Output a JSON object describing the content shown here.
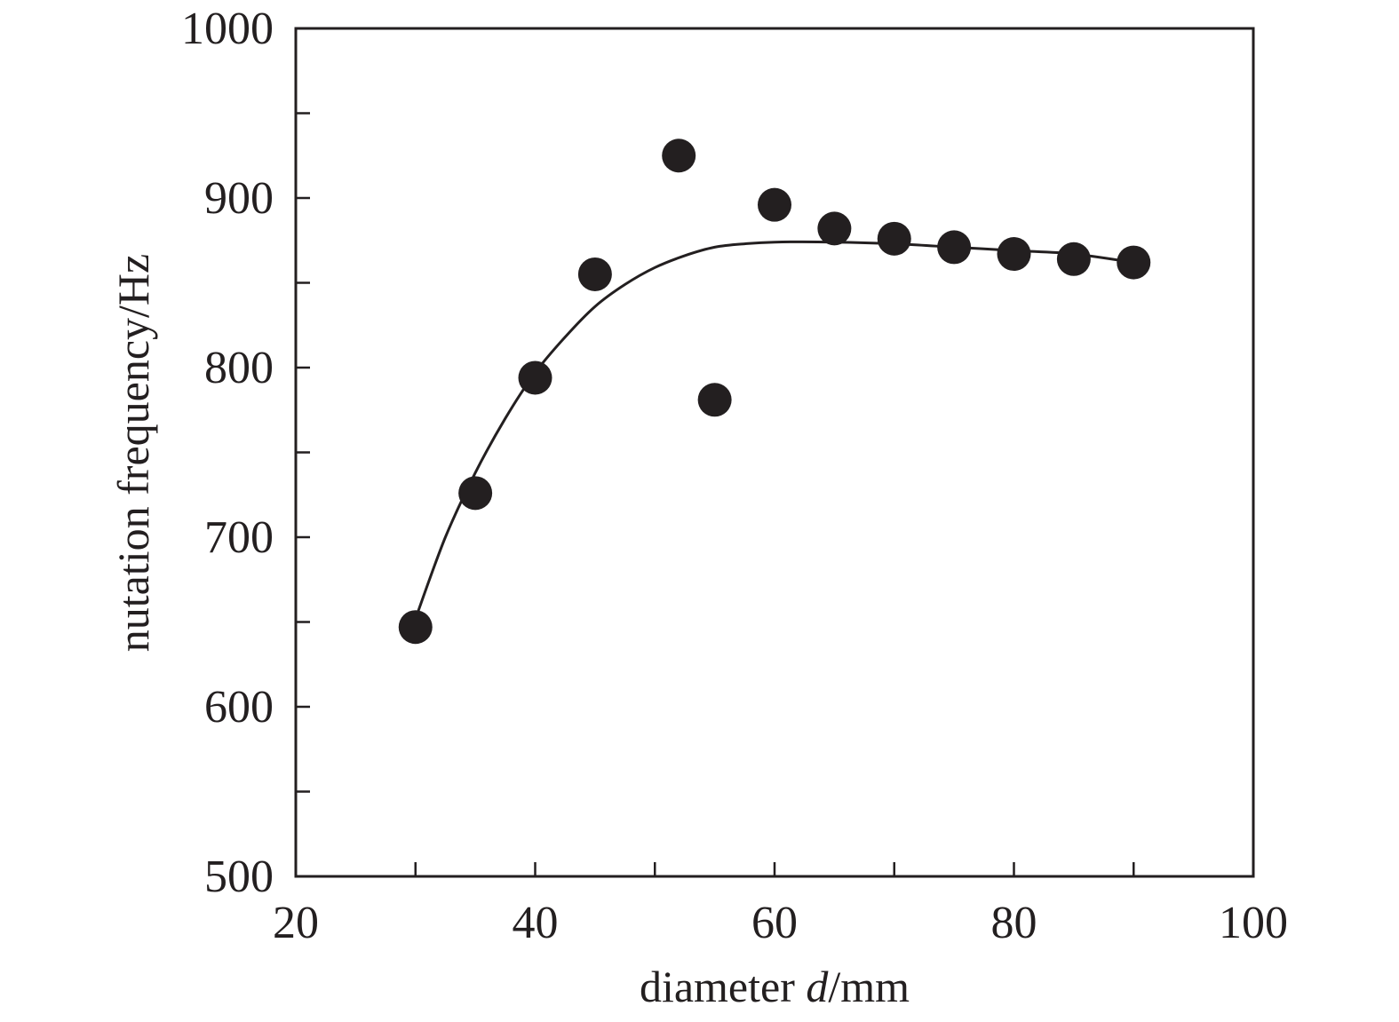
{
  "chart_data": {
    "type": "scatter",
    "title": "",
    "xlabel": "diameter d/mm",
    "xlabel_parts": {
      "prefix": "diameter ",
      "italic": "d",
      "suffix": "/mm"
    },
    "ylabel": "nutation frequency/Hz",
    "xlim": [
      20,
      100
    ],
    "ylim": [
      500,
      1000
    ],
    "x_ticks": [
      20,
      40,
      60,
      80,
      100
    ],
    "x_minor_ticks": [
      30,
      50,
      70,
      90
    ],
    "y_ticks": [
      500,
      600,
      700,
      800,
      900,
      1000
    ],
    "y_minor_ticks": [
      550,
      650,
      750,
      850,
      950
    ],
    "grid": false,
    "legend": "none",
    "colors": {
      "marker": "#231f20",
      "line": "#231f20",
      "axis": "#231f20"
    },
    "series": [
      {
        "kind": "points",
        "points": [
          {
            "x": 30,
            "y": 647
          },
          {
            "x": 35,
            "y": 726
          },
          {
            "x": 40,
            "y": 794
          },
          {
            "x": 45,
            "y": 855
          },
          {
            "x": 52,
            "y": 925
          },
          {
            "x": 55,
            "y": 781
          },
          {
            "x": 60,
            "y": 896
          },
          {
            "x": 65,
            "y": 882
          },
          {
            "x": 70,
            "y": 876
          },
          {
            "x": 75,
            "y": 871
          },
          {
            "x": 80,
            "y": 867
          },
          {
            "x": 85,
            "y": 864
          },
          {
            "x": 90,
            "y": 862
          }
        ]
      },
      {
        "kind": "fit-curve",
        "points": [
          {
            "x": 30,
            "y": 652
          },
          {
            "x": 32.5,
            "y": 700
          },
          {
            "x": 35,
            "y": 738
          },
          {
            "x": 37.5,
            "y": 770
          },
          {
            "x": 40,
            "y": 797
          },
          {
            "x": 42.5,
            "y": 818
          },
          {
            "x": 45,
            "y": 836
          },
          {
            "x": 47.5,
            "y": 849
          },
          {
            "x": 50,
            "y": 859
          },
          {
            "x": 52.5,
            "y": 866
          },
          {
            "x": 55,
            "y": 871
          },
          {
            "x": 57.5,
            "y": 873
          },
          {
            "x": 60,
            "y": 874
          },
          {
            "x": 65,
            "y": 874
          },
          {
            "x": 70,
            "y": 873
          },
          {
            "x": 75,
            "y": 871
          },
          {
            "x": 80,
            "y": 869
          },
          {
            "x": 85,
            "y": 867
          },
          {
            "x": 90,
            "y": 862
          }
        ]
      }
    ]
  }
}
